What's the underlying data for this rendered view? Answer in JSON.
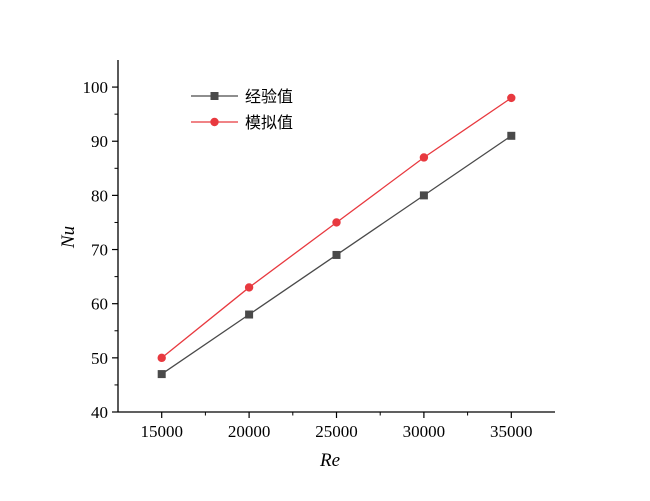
{
  "chart_data": {
    "type": "line",
    "title": "",
    "xlabel": "Re",
    "ylabel": "Nu",
    "x": [
      15000,
      20000,
      25000,
      30000,
      35000
    ],
    "xlim": [
      12500,
      37500
    ],
    "ylim": [
      40,
      105
    ],
    "xticks": [
      15000,
      20000,
      25000,
      30000,
      35000
    ],
    "yticks": [
      40,
      50,
      60,
      70,
      80,
      90,
      100
    ],
    "xtick_labels": [
      "15000",
      "20000",
      "25000",
      "30000",
      "35000"
    ],
    "ytick_labels": [
      "40",
      "50",
      "60",
      "70",
      "80",
      "90",
      "100"
    ],
    "grid": false,
    "legend_position": "top-left",
    "series": [
      {
        "name": "经验值",
        "values": [
          47,
          58,
          69,
          80,
          91
        ],
        "color": "#4a4a4a",
        "marker": "square"
      },
      {
        "name": "模拟值",
        "values": [
          50,
          63,
          75,
          87,
          98
        ],
        "color": "#e8393f",
        "marker": "circle"
      }
    ]
  }
}
